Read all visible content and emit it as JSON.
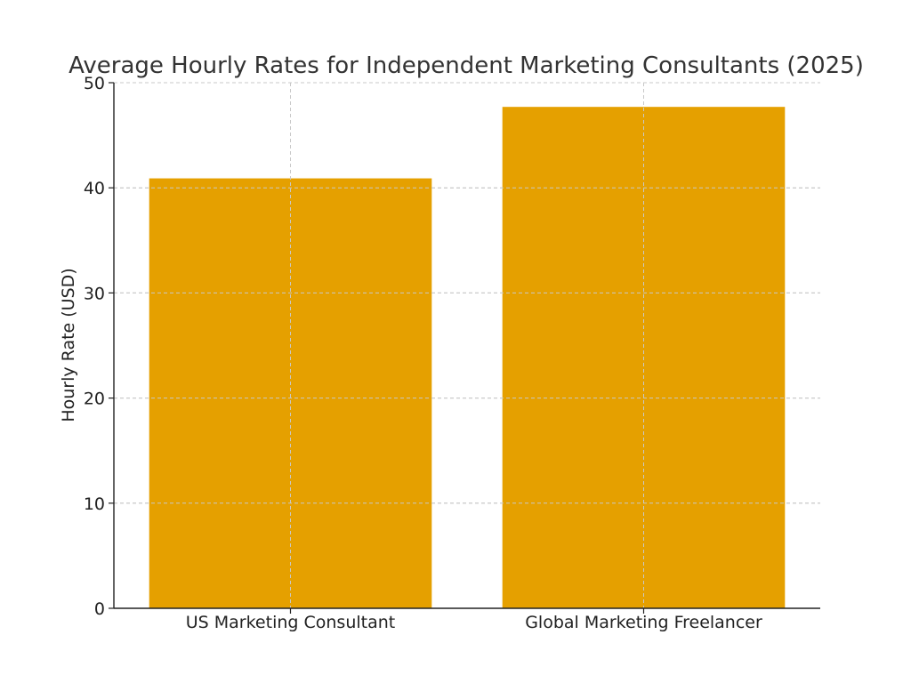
{
  "chart_data": {
    "type": "bar",
    "title": "Average Hourly Rates for Independent Marketing Consultants (2025)",
    "xlabel": "",
    "ylabel": "Hourly Rate (USD)",
    "categories": [
      "US Marketing Consultant",
      "Global Marketing Freelancer"
    ],
    "values": [
      40.9,
      47.7
    ],
    "ylim": [
      0,
      50
    ],
    "yticks": [
      "0",
      "10",
      "20",
      "30",
      "40",
      "50"
    ],
    "grid": true,
    "bar_color": "#E5A000",
    "legend": "none"
  }
}
